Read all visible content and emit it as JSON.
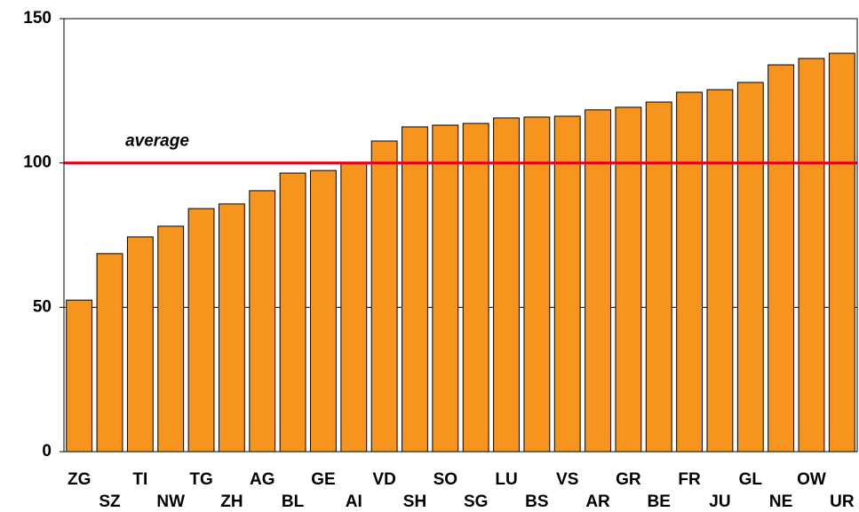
{
  "chart_data": {
    "type": "bar",
    "categories": [
      "ZG",
      "SZ",
      "TI",
      "NW",
      "TG",
      "ZH",
      "AG",
      "BL",
      "GE",
      "AI",
      "VD",
      "SH",
      "SO",
      "SG",
      "LU",
      "BS",
      "VS",
      "AR",
      "GR",
      "BE",
      "FR",
      "JU",
      "GL",
      "NE",
      "OW",
      "UR"
    ],
    "values": [
      52.5,
      68.6,
      74.4,
      78.1,
      84.2,
      85.8,
      90.4,
      96.5,
      97.4,
      100.2,
      107.6,
      112.5,
      113.1,
      113.7,
      115.6,
      115.9,
      116.2,
      118.4,
      119.3,
      121.1,
      124.5,
      125.4,
      127.9,
      134,
      136.2,
      138
    ],
    "color": "#f7941d",
    "ylim": [
      0,
      150
    ],
    "yticks": [
      0,
      50,
      100,
      150
    ],
    "grid": true,
    "reference_line": {
      "value": 100,
      "label": "average",
      "color": "#e3001b"
    }
  }
}
